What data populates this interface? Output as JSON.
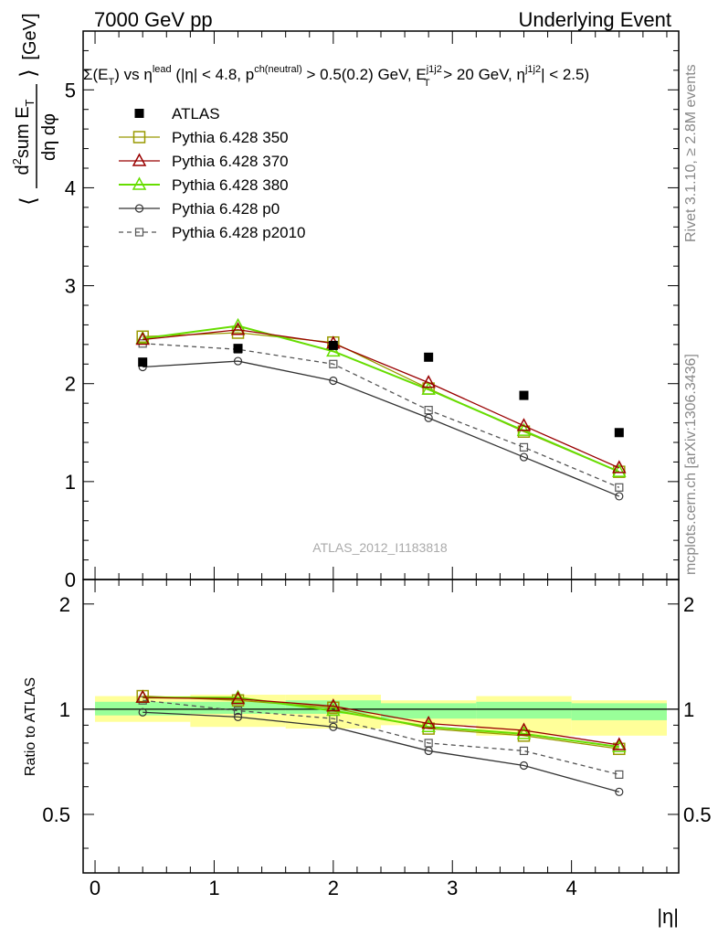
{
  "header": {
    "left": "7000 GeV pp",
    "right": "Underlying Event",
    "title": "Σ(E_T) vs η^lead (|η| < 4.8, p^ch(neutral) > 0.5(0.2) GeV, E_T^j1j2 > 20 GeV, η^j1j2| < 2.5)",
    "title_parts": {
      "p1": "Σ(E",
      "p1s": "T",
      "p2": ") vs η",
      "p2u": "lead",
      "p3": " (|η| < 4.8, p",
      "p3u": "ch(neutral)",
      "p4": " > 0.5(0.2) GeV, E",
      "p4u": "j1j2",
      "p4s": "T",
      "p5": " > 20 GeV, η",
      "p5u": "j1j2",
      "p6": "| < 2.5)"
    }
  },
  "side_labels": {
    "rivet": "Rivet 3.1.10, ≥ 2.8M events",
    "mcplots": "mcplots.cern.ch [arXiv:1306.3436]"
  },
  "watermark": "ATLAS_2012_I1183818",
  "colors": {
    "atlas": "#000000",
    "p350": "#999900",
    "p370": "#990000",
    "p380": "#66dd00",
    "p0": "#333333",
    "p2010": "#555555",
    "band_inner": "#99ff99",
    "band_outer": "#ffff99"
  },
  "chart_data": [
    {
      "type": "line",
      "ylabel": "⟨ d²sum E_T / dη dφ ⟩ [GeV]",
      "ylabel_parts": {
        "num": "d",
        "num_sup": "2",
        "num_rest": "sum E",
        "num_sub": "T",
        "den": "dη dφ",
        "unit": "[GeV]"
      },
      "xlim": [
        -0.1,
        4.9
      ],
      "ylim": [
        0,
        5.6
      ],
      "yticks": [
        0,
        1,
        2,
        3,
        4,
        5
      ],
      "ytick_labels": [
        "0",
        "1",
        "2",
        "3",
        "4",
        "5"
      ],
      "x": [
        0.4,
        1.2,
        2.0,
        2.8,
        3.6,
        4.4
      ],
      "series": [
        {
          "name": "ATLAS",
          "key": "atlas",
          "marker": "filled-square",
          "line": "none",
          "values": [
            2.22,
            2.36,
            2.39,
            2.27,
            1.88,
            1.5
          ]
        },
        {
          "name": "Pythia 6.428 350",
          "key": "p350",
          "marker": "open-square",
          "line": "solid",
          "values": [
            2.48,
            2.52,
            2.42,
            1.95,
            1.51,
            1.1
          ]
        },
        {
          "name": "Pythia 6.428 370",
          "key": "p370",
          "marker": "open-triangle",
          "line": "solid",
          "values": [
            2.45,
            2.55,
            2.41,
            2.01,
            1.57,
            1.14
          ]
        },
        {
          "name": "Pythia 6.428 380",
          "key": "p380",
          "marker": "open-triangle",
          "line": "solid",
          "values": [
            2.46,
            2.59,
            2.33,
            1.94,
            1.52,
            1.1
          ]
        },
        {
          "name": "Pythia 6.428 p0",
          "key": "p0",
          "marker": "open-circle",
          "line": "solid",
          "values": [
            2.17,
            2.23,
            2.03,
            1.65,
            1.25,
            0.85
          ]
        },
        {
          "name": "Pythia 6.428 p2010",
          "key": "p2010",
          "marker": "open-square-small",
          "line": "dashed",
          "values": [
            2.41,
            2.35,
            2.2,
            1.73,
            1.35,
            0.94
          ]
        }
      ]
    },
    {
      "type": "line",
      "ylabel": "Ratio to ATLAS",
      "xlabel": "|η|",
      "xlim": [
        -0.1,
        4.9
      ],
      "ylim": [
        0.34,
        2.35
      ],
      "yticks": [
        0.5,
        1,
        2
      ],
      "ytick_labels": [
        "0.5",
        "1",
        "2"
      ],
      "xticks": [
        0,
        1,
        2,
        3,
        4
      ],
      "xtick_labels": [
        "0",
        "1",
        "2",
        "3",
        "4"
      ],
      "x": [
        0.4,
        1.2,
        2.0,
        2.8,
        3.6,
        4.4
      ],
      "bands": [
        {
          "x0": 0.0,
          "x1": 0.8,
          "inner": [
            0.96,
            1.05
          ],
          "outer": [
            0.92,
            1.09
          ]
        },
        {
          "x0": 0.8,
          "x1": 1.6,
          "inner": [
            0.97,
            1.05
          ],
          "outer": [
            0.89,
            1.1
          ]
        },
        {
          "x0": 1.6,
          "x1": 2.4,
          "inner": [
            0.97,
            1.06
          ],
          "outer": [
            0.88,
            1.1
          ]
        },
        {
          "x0": 2.4,
          "x1": 3.2,
          "inner": [
            0.94,
            1.04
          ],
          "outer": [
            0.9,
            1.06
          ]
        },
        {
          "x0": 3.2,
          "x1": 4.0,
          "inner": [
            0.94,
            1.05
          ],
          "outer": [
            0.84,
            1.09
          ]
        },
        {
          "x0": 4.0,
          "x1": 4.8,
          "inner": [
            0.93,
            1.04
          ],
          "outer": [
            0.84,
            1.06
          ]
        }
      ],
      "series": [
        {
          "name": "Pythia 6.428 350",
          "key": "p350",
          "marker": "open-square",
          "line": "solid",
          "values": [
            1.09,
            1.06,
            1.01,
            0.88,
            0.84,
            0.77
          ]
        },
        {
          "name": "Pythia 6.428 370",
          "key": "p370",
          "marker": "open-triangle",
          "line": "solid",
          "values": [
            1.08,
            1.07,
            1.02,
            0.91,
            0.87,
            0.79
          ]
        },
        {
          "name": "Pythia 6.428 380",
          "key": "p380",
          "marker": "open-triangle",
          "line": "solid",
          "values": [
            1.08,
            1.08,
            0.99,
            0.89,
            0.85,
            0.78
          ]
        },
        {
          "name": "Pythia 6.428 p0",
          "key": "p0",
          "marker": "open-circle",
          "line": "solid",
          "values": [
            0.98,
            0.95,
            0.89,
            0.76,
            0.69,
            0.58
          ]
        },
        {
          "name": "Pythia 6.428 p2010",
          "key": "p2010",
          "marker": "open-square-small",
          "line": "dashed",
          "values": [
            1.06,
            0.99,
            0.94,
            0.8,
            0.76,
            0.65
          ]
        }
      ]
    }
  ]
}
